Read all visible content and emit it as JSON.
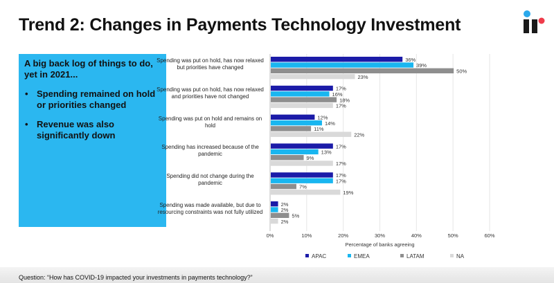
{
  "header": {
    "title": "Trend 2: Changes in Payments Technology Investment",
    "logo_icon": "ir-logo-icon"
  },
  "panel": {
    "heading": "A big back log of things to do, yet in 2021...",
    "bullets": [
      "Spending remained on hold or priorities changed",
      "Revenue was also significantly down"
    ]
  },
  "footer": {
    "question": "Question: “How has COVID-19 impacted your investments in payments technology?”"
  },
  "chart_data": {
    "type": "bar",
    "orientation": "horizontal",
    "categories": [
      "Spending was put on hold, has now relaxed but priorities have changed",
      "Spending was put on hold, has now relaxed and priorities have not changed",
      "Spending was put on hold and remains on hold",
      "Spending has increased because of the pandemic",
      "Spending did not change during the pandemic",
      "Spending was made available, but due to resourcing constraints was not fully utilized"
    ],
    "series": [
      {
        "name": "APAC",
        "color": "#1b1ba8",
        "values": [
          36,
          17,
          12,
          17,
          17,
          2
        ]
      },
      {
        "name": "EMEA",
        "color": "#19b6f0",
        "values": [
          39,
          16,
          14,
          13,
          17,
          2
        ]
      },
      {
        "name": "LATAM",
        "color": "#8e8e8e",
        "values": [
          50,
          18,
          11,
          9,
          7,
          5
        ]
      },
      {
        "name": "NA",
        "color": "#d9d9d9",
        "values": [
          23,
          17,
          22,
          17,
          19,
          2
        ]
      }
    ],
    "xlabel": "Percentage of banks agreeing",
    "xlim": [
      0,
      60
    ],
    "xticks": [
      "0%",
      "10%",
      "20%",
      "30%",
      "40%",
      "50%",
      "60%"
    ],
    "grid": true,
    "legend": "bottom"
  }
}
